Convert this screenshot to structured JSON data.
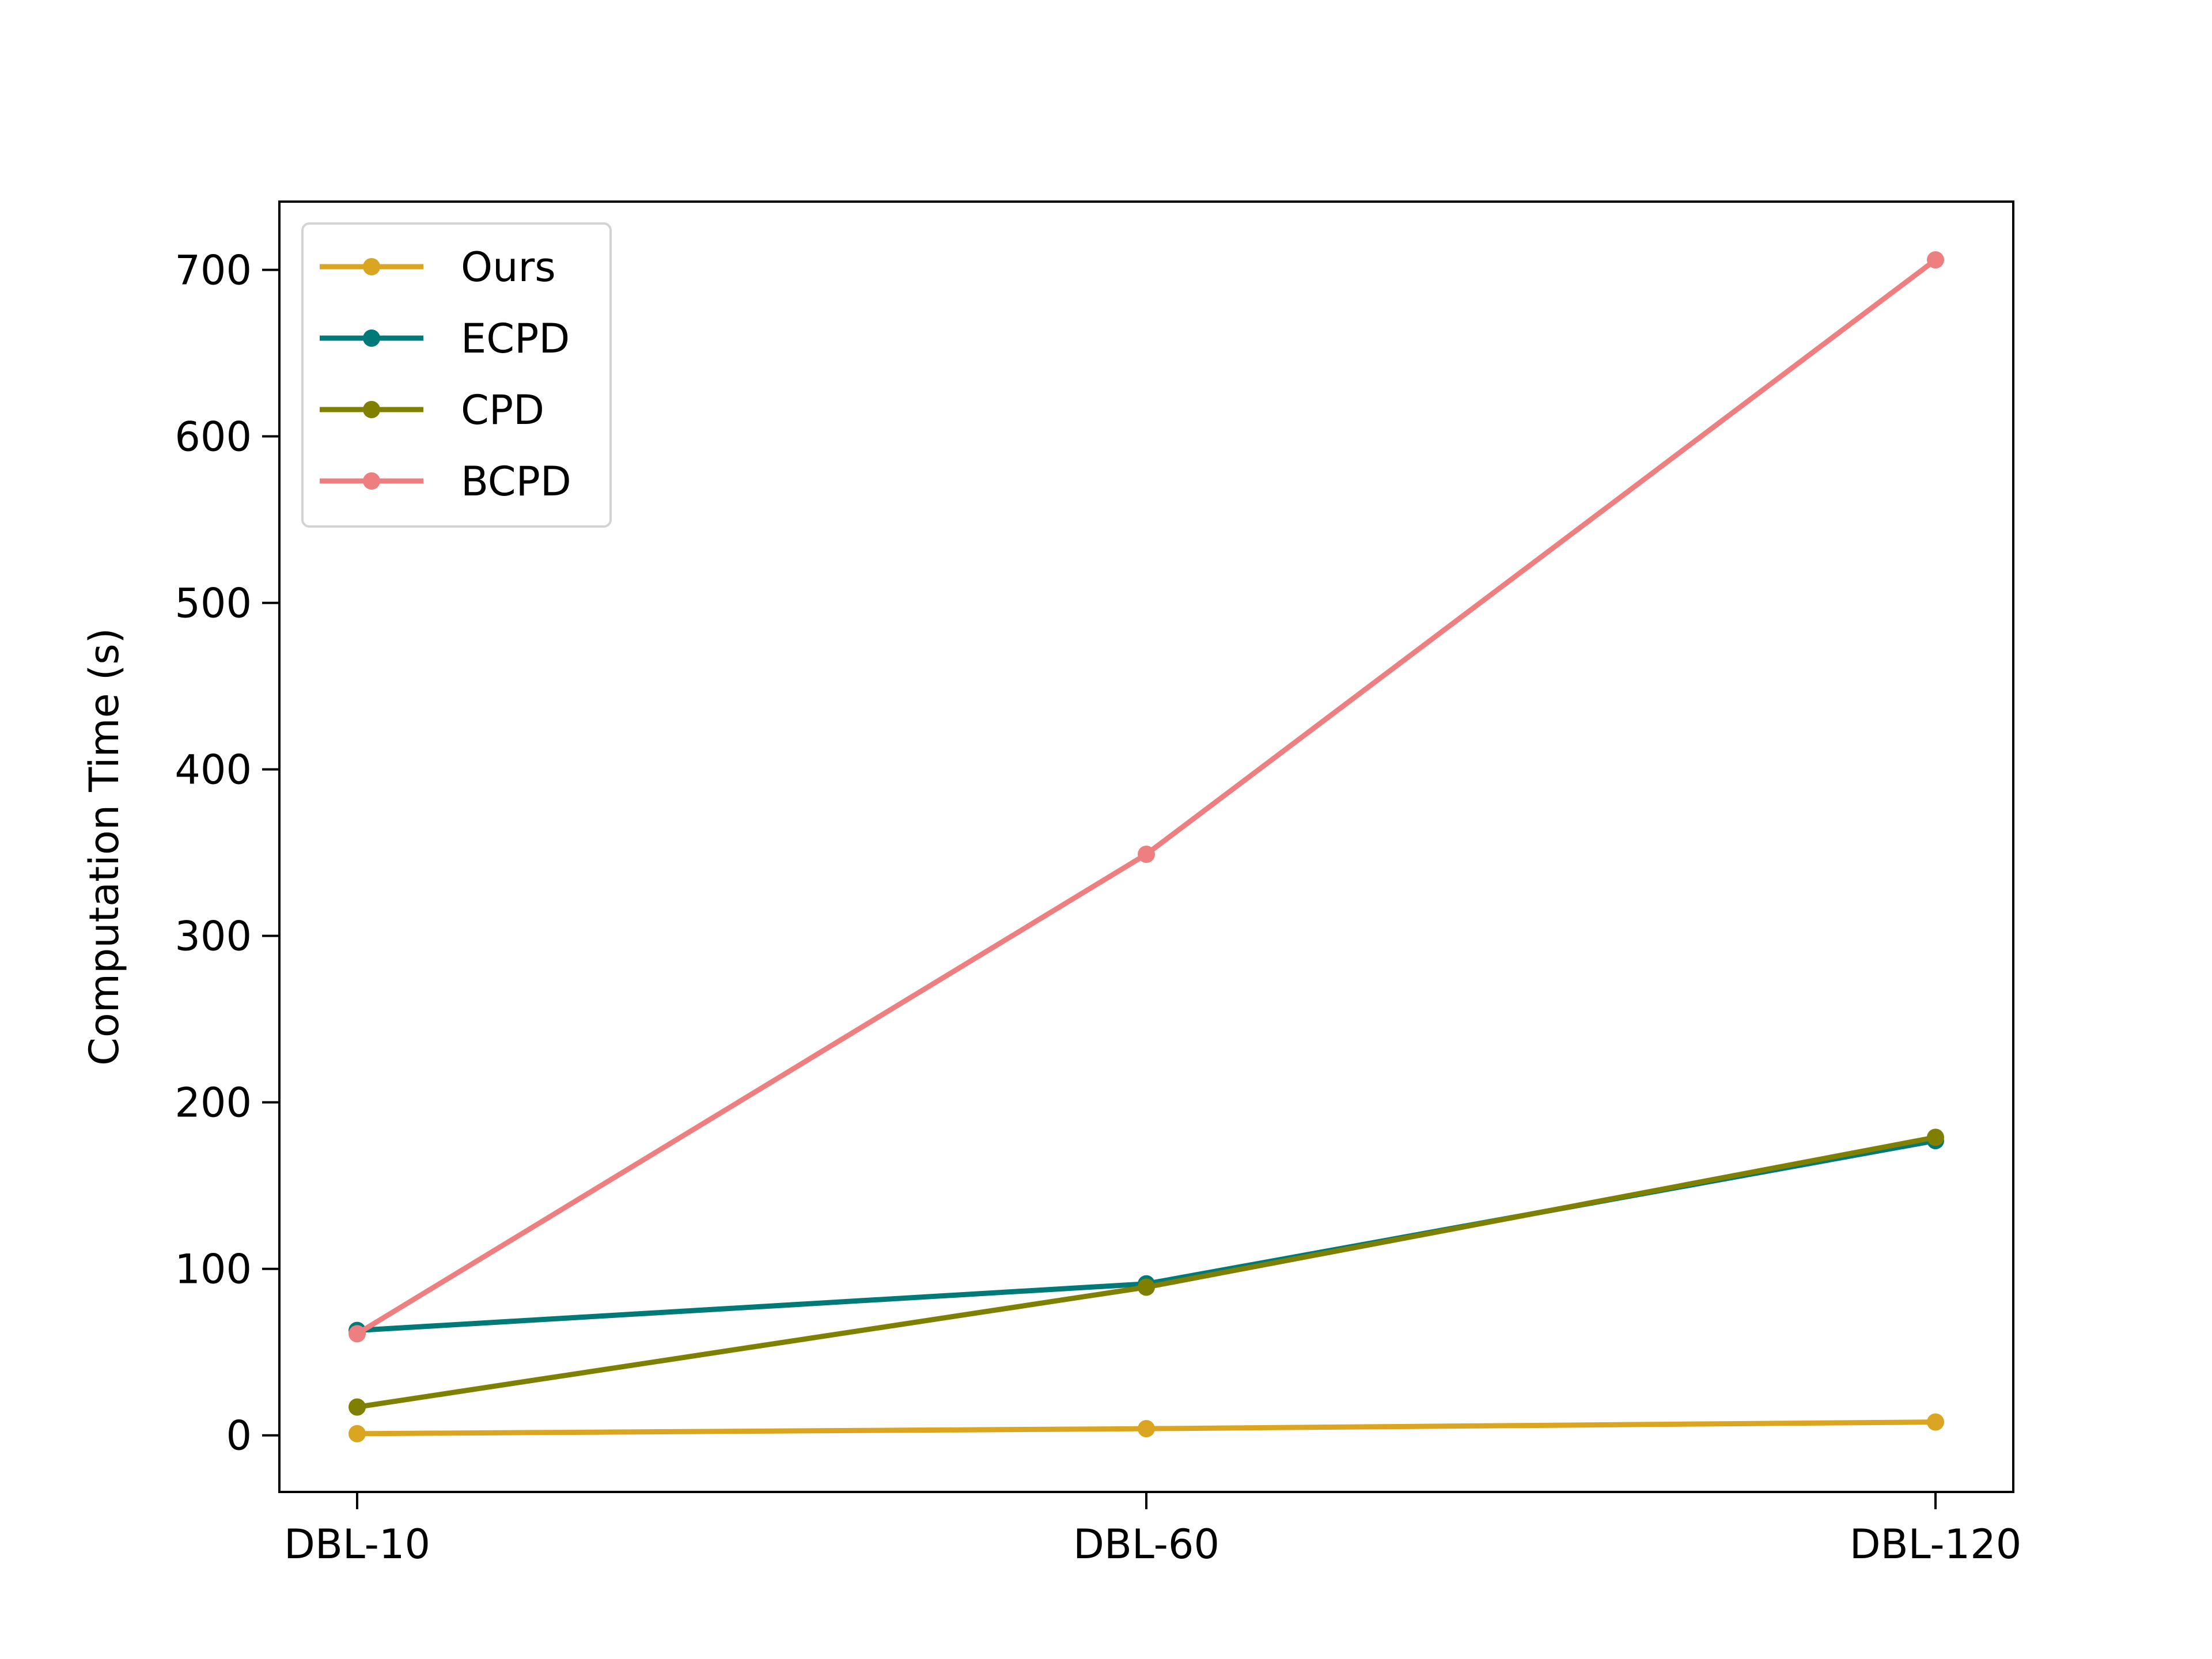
{
  "chart_data": {
    "type": "line",
    "title": "",
    "xlabel": "",
    "ylabel": "Computation Time (s)",
    "categories": [
      "DBL-10",
      "DBL-60",
      "DBL-120"
    ],
    "ylim": [
      -34,
      741
    ],
    "yticks": [
      0,
      100,
      200,
      300,
      400,
      500,
      600,
      700
    ],
    "grid": false,
    "legend_position": "top-left",
    "series": [
      {
        "name": "Ours",
        "color": "#DAA520",
        "values": [
          1,
          4,
          8
        ]
      },
      {
        "name": "ECPD",
        "color": "#007A78",
        "values": [
          63,
          91,
          177
        ]
      },
      {
        "name": "CPD",
        "color": "#808000",
        "values": [
          17,
          89,
          179
        ]
      },
      {
        "name": "BCPD",
        "color": "#EE7F80",
        "values": [
          61,
          349,
          706
        ]
      }
    ]
  }
}
